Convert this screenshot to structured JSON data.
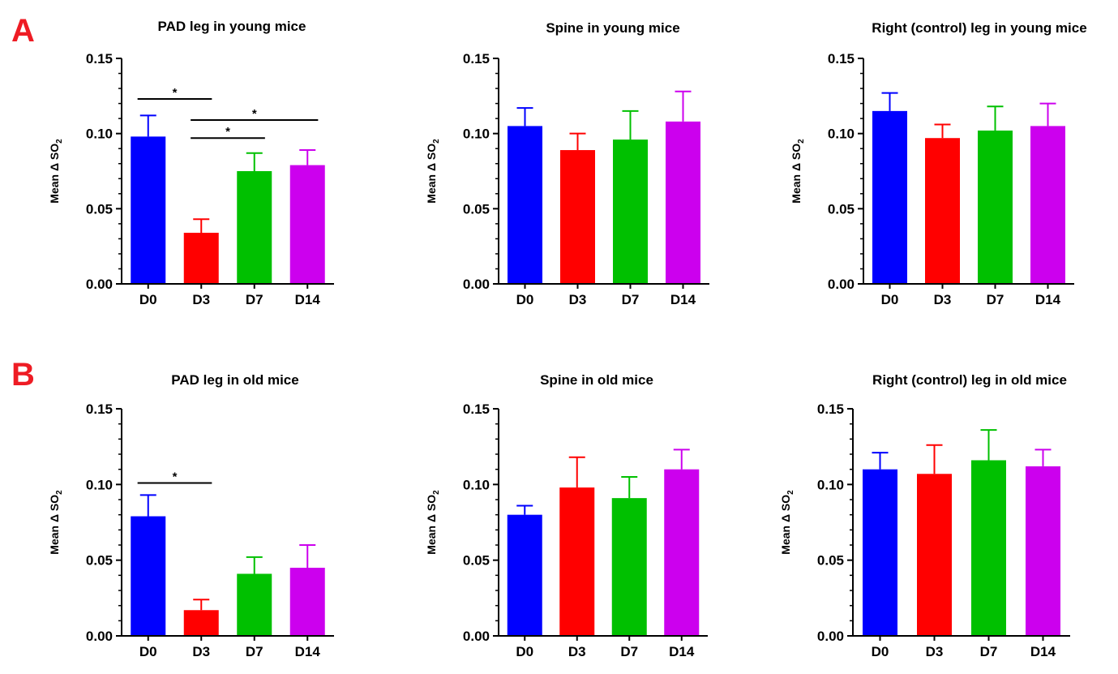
{
  "panel_letters": [
    "A",
    "B"
  ],
  "chart_data": [
    {
      "type": "bar",
      "title": "PAD leg in young mice",
      "ylabel": "Mean Δ SO",
      "ylabel_sub": "2",
      "categories": [
        "D0",
        "D3",
        "D7",
        "D14"
      ],
      "values": [
        0.098,
        0.034,
        0.075,
        0.079
      ],
      "errors": [
        0.014,
        0.009,
        0.012,
        0.01
      ],
      "colors": [
        "#0000ff",
        "#ff0000",
        "#00c000",
        "#cc00ee"
      ],
      "ylim": [
        0,
        0.15
      ],
      "yticks": [
        "0.00",
        "0.05",
        "0.10",
        "0.15"
      ],
      "annotations": [
        {
          "from": "D0",
          "to": "D3",
          "y": 0.123,
          "label": "*"
        },
        {
          "from": "D3",
          "to": "D14",
          "y": 0.109,
          "label": "*"
        },
        {
          "from": "D3",
          "to": "D7",
          "y": 0.097,
          "label": "*"
        }
      ]
    },
    {
      "type": "bar",
      "title": "Spine in young mice",
      "ylabel": "Mean Δ SO",
      "ylabel_sub": "2",
      "categories": [
        "D0",
        "D3",
        "D7",
        "D14"
      ],
      "values": [
        0.105,
        0.089,
        0.096,
        0.108
      ],
      "errors": [
        0.012,
        0.011,
        0.019,
        0.02
      ],
      "colors": [
        "#0000ff",
        "#ff0000",
        "#00c000",
        "#cc00ee"
      ],
      "ylim": [
        0,
        0.15
      ],
      "yticks": [
        "0.00",
        "0.05",
        "0.10",
        "0.15"
      ],
      "annotations": []
    },
    {
      "type": "bar",
      "title": "Right (control) leg in young mice",
      "ylabel": "Mean Δ SO",
      "ylabel_sub": "2",
      "categories": [
        "D0",
        "D3",
        "D7",
        "D14"
      ],
      "values": [
        0.115,
        0.097,
        0.102,
        0.105
      ],
      "errors": [
        0.012,
        0.009,
        0.016,
        0.015
      ],
      "colors": [
        "#0000ff",
        "#ff0000",
        "#00c000",
        "#cc00ee"
      ],
      "ylim": [
        0,
        0.15
      ],
      "yticks": [
        "0.00",
        "0.05",
        "0.10",
        "0.15"
      ],
      "annotations": []
    },
    {
      "type": "bar",
      "title": "PAD leg in old mice",
      "ylabel": "Mean Δ SO",
      "ylabel_sub": "2",
      "categories": [
        "D0",
        "D3",
        "D7",
        "D14"
      ],
      "values": [
        0.079,
        0.017,
        0.041,
        0.045
      ],
      "errors": [
        0.014,
        0.007,
        0.011,
        0.015
      ],
      "colors": [
        "#0000ff",
        "#ff0000",
        "#00c000",
        "#cc00ee"
      ],
      "ylim": [
        0,
        0.15
      ],
      "yticks": [
        "0.00",
        "0.05",
        "0.10",
        "0.15"
      ],
      "annotations": [
        {
          "from": "D0",
          "to": "D3",
          "y": 0.101,
          "label": "*"
        }
      ]
    },
    {
      "type": "bar",
      "title": "Spine in old mice",
      "ylabel": "Mean Δ SO",
      "ylabel_sub": "2",
      "categories": [
        "D0",
        "D3",
        "D7",
        "D14"
      ],
      "values": [
        0.08,
        0.098,
        0.091,
        0.11
      ],
      "errors": [
        0.006,
        0.02,
        0.014,
        0.013
      ],
      "colors": [
        "#0000ff",
        "#ff0000",
        "#00c000",
        "#cc00ee"
      ],
      "ylim": [
        0,
        0.15
      ],
      "yticks": [
        "0.00",
        "0.05",
        "0.10",
        "0.15"
      ],
      "annotations": []
    },
    {
      "type": "bar",
      "title": "Right (control) leg in old mice",
      "ylabel": "Mean Δ SO",
      "ylabel_sub": "2",
      "categories": [
        "D0",
        "D3",
        "D7",
        "D14"
      ],
      "values": [
        0.11,
        0.107,
        0.116,
        0.112
      ],
      "errors": [
        0.011,
        0.019,
        0.02,
        0.011
      ],
      "colors": [
        "#0000ff",
        "#ff0000",
        "#00c000",
        "#cc00ee"
      ],
      "ylim": [
        0,
        0.15
      ],
      "yticks": [
        "0.00",
        "0.05",
        "0.10",
        "0.15"
      ],
      "annotations": []
    }
  ]
}
